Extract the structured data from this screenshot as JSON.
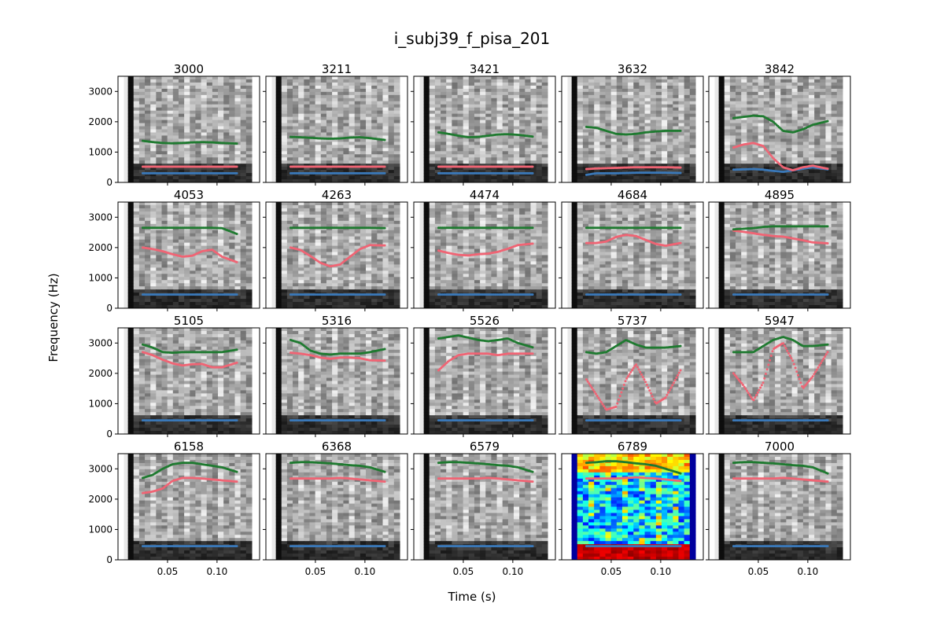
{
  "figure": {
    "title": "i_subj39_f_pisa_201",
    "xlabel": "Time (s)",
    "ylabel": "Frequency (Hz)"
  },
  "colors": {
    "f1": "#3a78b8",
    "f2": "#f06474",
    "f3": "#1f7a30",
    "axis": "#000000"
  },
  "chart_data": {
    "type": "scatter",
    "rows": 4,
    "cols": 5,
    "xlim": [
      0.0,
      0.143
    ],
    "ylim": [
      0,
      3500
    ],
    "xticks": [
      0.05,
      0.1
    ],
    "xtick_labels": [
      "0.05",
      "0.10"
    ],
    "yticks": [
      0,
      1000,
      2000,
      3000
    ],
    "ytick_labels": [
      "0",
      "1000",
      "2000",
      "3000"
    ],
    "background": "spectrogram",
    "time": [
      0.025,
      0.035,
      0.045,
      0.055,
      0.065,
      0.075,
      0.085,
      0.095,
      0.105,
      0.12
    ],
    "panels": [
      {
        "title": "3000",
        "colormap": "gray",
        "f1": [
          300,
          300,
          300,
          300,
          300,
          300,
          300,
          300,
          300,
          300
        ],
        "f2": [
          520,
          520,
          520,
          520,
          520,
          520,
          520,
          520,
          520,
          520
        ],
        "f3": [
          1370,
          1330,
          1300,
          1290,
          1300,
          1320,
          1330,
          1320,
          1300,
          1280
        ]
      },
      {
        "title": "3211",
        "colormap": "gray",
        "f1": [
          300,
          300,
          300,
          300,
          300,
          300,
          300,
          300,
          300,
          300
        ],
        "f2": [
          520,
          520,
          520,
          520,
          520,
          520,
          520,
          520,
          520,
          520
        ],
        "f3": [
          1500,
          1490,
          1470,
          1450,
          1440,
          1450,
          1480,
          1490,
          1460,
          1400
        ]
      },
      {
        "title": "3421",
        "colormap": "gray",
        "f1": [
          300,
          300,
          300,
          300,
          300,
          300,
          300,
          300,
          300,
          300
        ],
        "f2": [
          520,
          520,
          520,
          520,
          520,
          520,
          520,
          520,
          520,
          520
        ],
        "f3": [
          1650,
          1600,
          1540,
          1490,
          1500,
          1540,
          1580,
          1590,
          1570,
          1510
        ]
      },
      {
        "title": "3632",
        "colormap": "gray",
        "f1": [
          250,
          300,
          300,
          300,
          310,
          320,
          320,
          320,
          320,
          310
        ],
        "f2": [
          440,
          460,
          470,
          480,
          490,
          500,
          500,
          500,
          500,
          490
        ],
        "f3": [
          1830,
          1800,
          1700,
          1600,
          1580,
          1600,
          1650,
          1680,
          1700,
          1700
        ]
      },
      {
        "title": "3842",
        "colormap": "gray",
        "f1": [
          420,
          430,
          440,
          420,
          380,
          350,
          400,
          450,
          500,
          430
        ],
        "f2": [
          1150,
          1250,
          1300,
          1200,
          800,
          500,
          400,
          500,
          550,
          450
        ],
        "f3": [
          2120,
          2160,
          2200,
          2180,
          2000,
          1700,
          1650,
          1750,
          1900,
          2020
        ]
      },
      {
        "title": "4053",
        "colormap": "gray",
        "f1": [
          450,
          450,
          450,
          450,
          450,
          450,
          450,
          450,
          450,
          450
        ],
        "f2": [
          2000,
          1950,
          1880,
          1780,
          1700,
          1730,
          1880,
          1930,
          1700,
          1520
        ],
        "f3": [
          2650,
          2650,
          2650,
          2650,
          2650,
          2650,
          2650,
          2650,
          2640,
          2450
        ]
      },
      {
        "title": "4263",
        "colormap": "gray",
        "f1": [
          450,
          450,
          450,
          450,
          450,
          450,
          450,
          450,
          450,
          450
        ],
        "f2": [
          2000,
          1920,
          1720,
          1500,
          1380,
          1440,
          1700,
          1950,
          2080,
          2070
        ],
        "f3": [
          2650,
          2650,
          2650,
          2650,
          2650,
          2650,
          2650,
          2650,
          2650,
          2640
        ]
      },
      {
        "title": "4474",
        "colormap": "gray",
        "f1": [
          450,
          450,
          450,
          450,
          450,
          450,
          450,
          450,
          450,
          450
        ],
        "f2": [
          1900,
          1820,
          1760,
          1740,
          1780,
          1800,
          1860,
          1960,
          2080,
          2130
        ],
        "f3": [
          2650,
          2650,
          2650,
          2650,
          2650,
          2650,
          2650,
          2650,
          2650,
          2650
        ]
      },
      {
        "title": "4684",
        "colormap": "gray",
        "f1": [
          450,
          450,
          450,
          450,
          450,
          450,
          450,
          450,
          450,
          450
        ],
        "f2": [
          2150,
          2150,
          2200,
          2350,
          2420,
          2380,
          2250,
          2120,
          2060,
          2150
        ],
        "f3": [
          2650,
          2650,
          2650,
          2650,
          2650,
          2650,
          2650,
          2650,
          2650,
          2650
        ]
      },
      {
        "title": "4895",
        "colormap": "gray",
        "f1": [
          450,
          450,
          450,
          450,
          450,
          450,
          450,
          450,
          450,
          450
        ],
        "f2": [
          2560,
          2520,
          2470,
          2420,
          2380,
          2360,
          2300,
          2240,
          2170,
          2140
        ],
        "f3": [
          2600,
          2620,
          2640,
          2680,
          2700,
          2700,
          2700,
          2700,
          2700,
          2700
        ]
      },
      {
        "title": "5105",
        "colormap": "gray",
        "f1": [
          450,
          450,
          450,
          450,
          450,
          450,
          450,
          450,
          450,
          450
        ],
        "f2": [
          2700,
          2600,
          2450,
          2330,
          2260,
          2300,
          2310,
          2200,
          2200,
          2350
        ],
        "f3": [
          2950,
          2850,
          2700,
          2680,
          2700,
          2700,
          2700,
          2700,
          2700,
          2780
        ]
      },
      {
        "title": "5316",
        "colormap": "gray",
        "f1": [
          450,
          450,
          450,
          450,
          450,
          450,
          450,
          450,
          450,
          450
        ],
        "f2": [
          2680,
          2650,
          2600,
          2520,
          2480,
          2520,
          2520,
          2500,
          2430,
          2420
        ],
        "f3": [
          3100,
          3000,
          2750,
          2650,
          2620,
          2650,
          2650,
          2650,
          2700,
          2800
        ]
      },
      {
        "title": "5526",
        "colormap": "gray",
        "f1": [
          450,
          450,
          450,
          450,
          450,
          450,
          450,
          450,
          450,
          450
        ],
        "f2": [
          2100,
          2400,
          2600,
          2650,
          2650,
          2650,
          2600,
          2650,
          2650,
          2650
        ],
        "f3": [
          3150,
          3200,
          3250,
          3180,
          3100,
          3060,
          3100,
          3150,
          3000,
          2860
        ]
      },
      {
        "title": "5737",
        "colormap": "gray",
        "f1": [
          450,
          450,
          450,
          450,
          450,
          450,
          450,
          450,
          450,
          450
        ],
        "f2": [
          1800,
          1300,
          800,
          900,
          1800,
          2300,
          1700,
          1000,
          1200,
          2100
        ],
        "f3": [
          2700,
          2650,
          2700,
          2900,
          3100,
          2950,
          2850,
          2850,
          2850,
          2900
        ]
      },
      {
        "title": "5947",
        "colormap": "gray",
        "f1": [
          450,
          450,
          450,
          450,
          450,
          450,
          450,
          450,
          450,
          450
        ],
        "f2": [
          2000,
          1600,
          1100,
          1700,
          2800,
          3000,
          2400,
          1500,
          1900,
          2700
        ],
        "f3": [
          2700,
          2700,
          2700,
          2900,
          3100,
          3200,
          3100,
          2900,
          2900,
          2950
        ]
      },
      {
        "title": "6158",
        "colormap": "gray",
        "f1": [
          450,
          450,
          450,
          450,
          450,
          450,
          450,
          450,
          450,
          450
        ],
        "f2": [
          2200,
          2250,
          2350,
          2600,
          2700,
          2700,
          2680,
          2650,
          2620,
          2580
        ],
        "f3": [
          2700,
          2800,
          3000,
          3150,
          3200,
          3200,
          3150,
          3100,
          3050,
          2900
        ]
      },
      {
        "title": "6368",
        "colormap": "gray",
        "f1": [
          450,
          450,
          450,
          450,
          450,
          450,
          450,
          450,
          450,
          450
        ],
        "f2": [
          2680,
          2680,
          2680,
          2680,
          2680,
          2700,
          2680,
          2650,
          2620,
          2580
        ],
        "f3": [
          3200,
          3220,
          3220,
          3200,
          3180,
          3150,
          3120,
          3100,
          3050,
          2900
        ]
      },
      {
        "title": "6579",
        "colormap": "gray",
        "f1": [
          450,
          450,
          450,
          450,
          450,
          450,
          450,
          450,
          450,
          450
        ],
        "f2": [
          2680,
          2680,
          2680,
          2680,
          2680,
          2700,
          2680,
          2650,
          2620,
          2580
        ],
        "f3": [
          3200,
          3220,
          3220,
          3200,
          3180,
          3150,
          3120,
          3100,
          3050,
          2900
        ]
      },
      {
        "title": "6789",
        "colormap": "jet",
        "f1": [
          450,
          450,
          450,
          450,
          450,
          450,
          450,
          450,
          450,
          450
        ],
        "f2": [
          2680,
          2680,
          2680,
          2680,
          2700,
          2720,
          2700,
          2680,
          2650,
          2600
        ],
        "f3": [
          3200,
          3220,
          3250,
          3250,
          3220,
          3180,
          3150,
          3100,
          3000,
          2850
        ]
      },
      {
        "title": "7000",
        "colormap": "gray",
        "f1": [
          450,
          450,
          450,
          450,
          450,
          450,
          450,
          450,
          450,
          450
        ],
        "f2": [
          2680,
          2680,
          2680,
          2680,
          2680,
          2700,
          2680,
          2650,
          2620,
          2580
        ],
        "f3": [
          3200,
          3220,
          3220,
          3200,
          3180,
          3150,
          3120,
          3100,
          3050,
          2850
        ]
      }
    ]
  }
}
